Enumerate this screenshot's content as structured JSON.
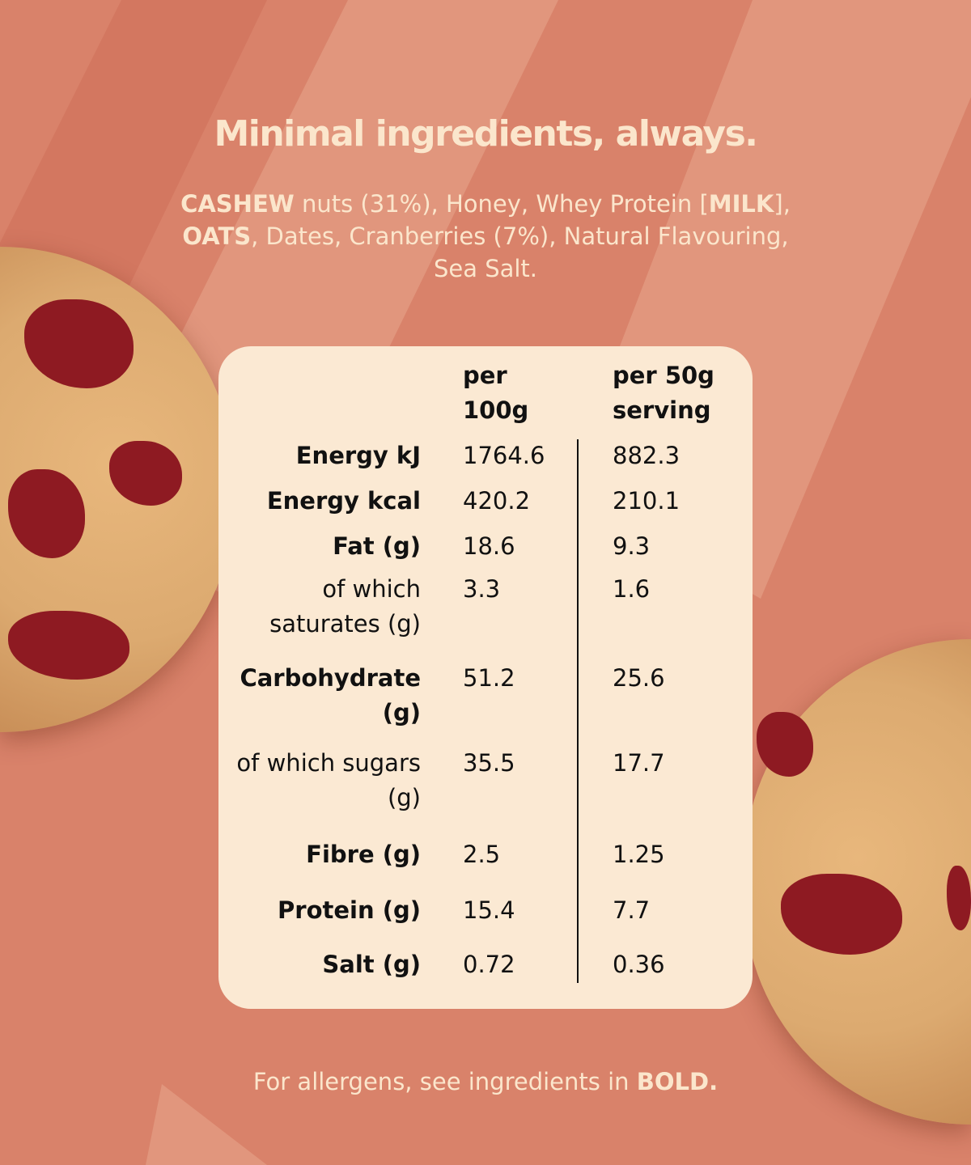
{
  "title": "Minimal ingredients, always.",
  "ingredients": [
    {
      "text": "CASHEW",
      "bold": true
    },
    {
      "text": " nuts (31%), Honey, Whey Protein [",
      "bold": false
    },
    {
      "text": "MILK",
      "bold": true
    },
    {
      "text": "], ",
      "bold": false
    },
    {
      "text": "OATS",
      "bold": true
    },
    {
      "text": ", Dates, Cranberries (7%), Natural Flavouring, Sea Salt.",
      "bold": false
    }
  ],
  "table": {
    "headers": {
      "per100_line1": "per",
      "per100_line2": "100g",
      "serving_line1": "per 50g",
      "serving_line2": "serving"
    },
    "rows": [
      {
        "label": "Energy kJ",
        "bold": true,
        "per100": "1764.6",
        "serving": "882.3"
      },
      {
        "label": "Energy kcal",
        "bold": true,
        "per100": "420.2",
        "serving": "210.1"
      },
      {
        "label": "Fat (g)",
        "bold": true,
        "per100": "18.6",
        "serving": "9.3"
      },
      {
        "label": "of which saturates (g)",
        "bold": false,
        "per100": "3.3",
        "serving": "1.6"
      },
      {
        "label": "Carbohydrate (g)",
        "bold": true,
        "per100": "51.2",
        "serving": "25.6"
      },
      {
        "label": "of which sugars (g)",
        "bold": false,
        "per100": "35.5",
        "serving": "17.7"
      },
      {
        "label": "Fibre (g)",
        "bold": true,
        "per100": "2.5",
        "serving": "1.25"
      },
      {
        "label": "Protein (g)",
        "bold": true,
        "per100": "15.4",
        "serving": "7.7"
      },
      {
        "label": "Salt (g)",
        "bold": true,
        "per100": "0.72",
        "serving": "0.36"
      }
    ]
  },
  "footer": {
    "text": "For allergens, see ingredients in ",
    "bold": "BOLD."
  },
  "colors": {
    "background": "#d9826a",
    "card": "#fbe9d3",
    "text_light": "#fbe6cc"
  }
}
